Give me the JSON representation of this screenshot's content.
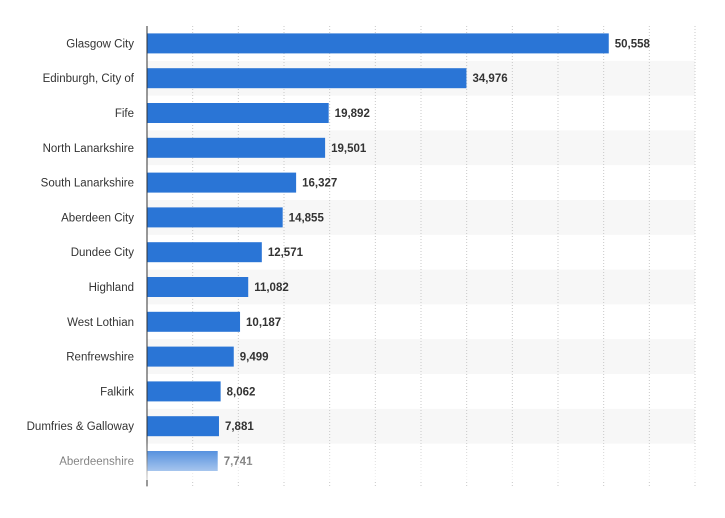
{
  "chart_data": {
    "type": "bar",
    "orientation": "horizontal",
    "categories": [
      "Glasgow City",
      "Edinburgh, City of",
      "Fife",
      "North Lanarkshire",
      "South Lanarkshire",
      "Aberdeen City",
      "Dundee City",
      "Highland",
      "West Lothian",
      "Renfrewshire",
      "Falkirk",
      "Dumfries & Galloway",
      "Aberdeenshire"
    ],
    "values": [
      50558,
      34976,
      19892,
      19501,
      16327,
      14855,
      12571,
      11082,
      10187,
      9499,
      8062,
      7881,
      7741
    ],
    "value_labels": [
      "50,558",
      "34,976",
      "19,892",
      "19,501",
      "16,327",
      "14,855",
      "12,571",
      "11,082",
      "10,187",
      "9,499",
      "8,062",
      "7,881",
      "7,741"
    ],
    "xlim": [
      0,
      60000
    ],
    "grid": true,
    "colors": {
      "bar": "#2a75d6",
      "band": "#f7f7f7",
      "grid": "#c8c8c8",
      "axis": "#333333"
    }
  }
}
